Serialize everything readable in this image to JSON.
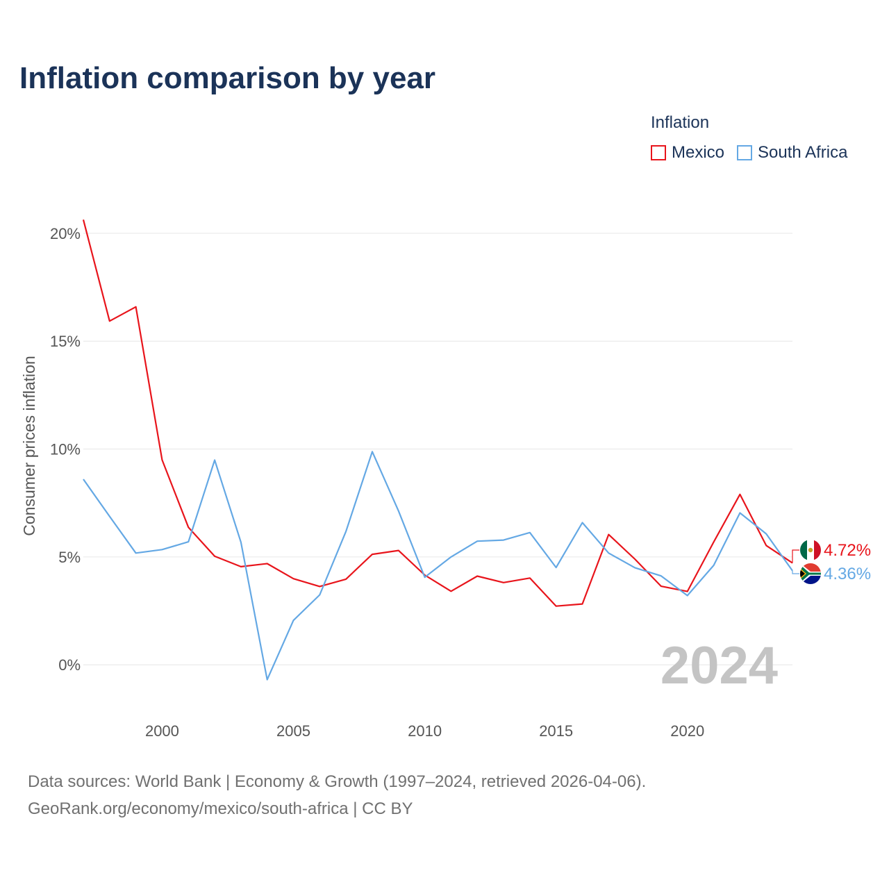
{
  "title": "Inflation comparison by year",
  "legend": {
    "title": "Inflation",
    "items": [
      {
        "name": "Mexico",
        "color": "#e8141b"
      },
      {
        "name": "South Africa",
        "color": "#64a8e4"
      }
    ]
  },
  "footer": {
    "line1": "Data sources: World Bank | Economy & Growth (1997–2024, retrieved 2026-04-06).",
    "line2": "GeoRank.org/economy/mexico/south-africa | CC BY"
  },
  "current_year": "2024",
  "end_labels": {
    "mexico": "4.72%",
    "south_africa": "4.36%"
  },
  "icons": {
    "mexico": "mexico-flag-icon",
    "south_africa": "south-africa-flag-icon"
  },
  "chart_data": {
    "type": "line",
    "title": "Inflation comparison by year",
    "xlabel": "",
    "ylabel": "Consumer prices inflation",
    "xlim": [
      1997,
      2024
    ],
    "ylim": [
      -1.7,
      21.8
    ],
    "x_ticks": [
      2000,
      2005,
      2010,
      2015,
      2020
    ],
    "y_ticks": [
      0,
      5,
      10,
      15,
      20
    ],
    "y_tick_labels": [
      "0%",
      "5%",
      "10%",
      "15%",
      "20%"
    ],
    "x": [
      1997,
      1998,
      1999,
      2000,
      2001,
      2002,
      2003,
      2004,
      2005,
      2006,
      2007,
      2008,
      2009,
      2010,
      2011,
      2012,
      2013,
      2014,
      2015,
      2016,
      2017,
      2018,
      2019,
      2020,
      2021,
      2022,
      2023,
      2024
    ],
    "series": [
      {
        "name": "Mexico",
        "color": "#e8141b",
        "values": [
          20.63,
          15.93,
          16.59,
          9.5,
          6.37,
          5.03,
          4.55,
          4.69,
          3.99,
          3.63,
          3.97,
          5.12,
          5.3,
          4.16,
          3.41,
          4.11,
          3.81,
          4.02,
          2.72,
          2.82,
          6.04,
          4.9,
          3.64,
          3.4,
          5.69,
          7.9,
          5.53,
          4.72
        ]
      },
      {
        "name": "South Africa",
        "color": "#64a8e4",
        "values": [
          8.6,
          6.88,
          5.18,
          5.34,
          5.7,
          9.49,
          5.68,
          -0.69,
          2.06,
          3.24,
          6.18,
          9.88,
          7.13,
          4.06,
          5.0,
          5.73,
          5.78,
          6.13,
          4.51,
          6.59,
          5.18,
          4.5,
          4.12,
          3.21,
          4.61,
          7.04,
          6.07,
          4.36
        ]
      }
    ]
  }
}
